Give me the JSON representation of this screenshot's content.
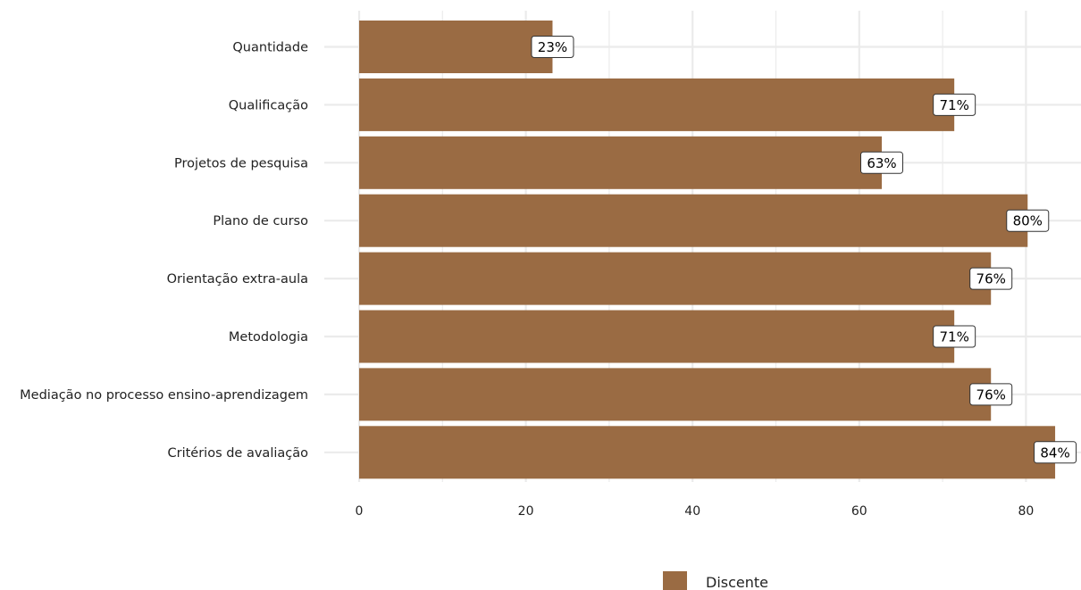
{
  "chart_data": {
    "type": "bar",
    "orientation": "horizontal",
    "categories": [
      "Quantidade",
      "Qualificação",
      "Projetos de pesquisa",
      "Plano de curso",
      "Orientação extra-aula",
      "Metodologia",
      "Mediação no processo ensino-aprendizagem",
      "Critérios de avaliação"
    ],
    "series": [
      {
        "name": "Discente",
        "values": [
          23.2,
          71.4,
          62.7,
          80.2,
          75.8,
          71.4,
          75.8,
          83.5
        ],
        "labels": [
          "23%",
          "71%",
          "63%",
          "80%",
          "76%",
          "71%",
          "76%",
          "84%"
        ],
        "color": "#9a6b43"
      }
    ],
    "x_ticks": [
      "0",
      "20",
      "40",
      "60",
      "80"
    ],
    "xlim": [
      0,
      86
    ],
    "grid": true,
    "legend_position": "bottom"
  }
}
